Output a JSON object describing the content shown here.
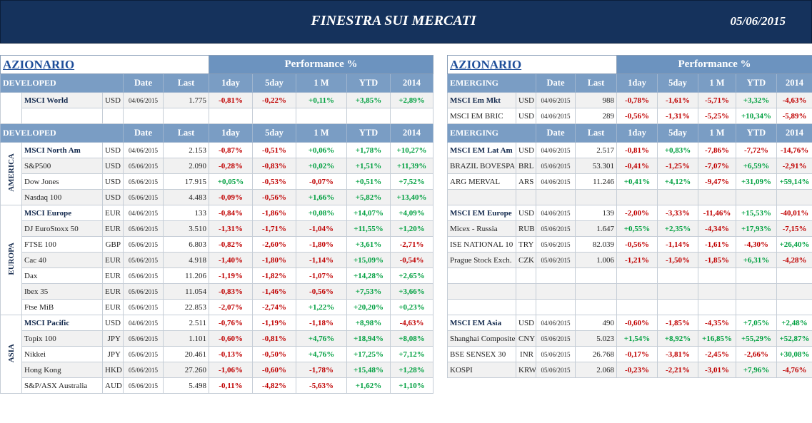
{
  "header": {
    "title": "FINESTRA SUI MERCATI",
    "date": "05/06/2015"
  },
  "left": {
    "title": "AZIONARIO",
    "performance": "Performance %",
    "top": {
      "label": "DEVELOPED",
      "columns": [
        "Date",
        "Last",
        "1day",
        "5day",
        "1 M",
        "YTD",
        "2014"
      ],
      "rows": [
        [
          "MSCI World",
          "USD",
          "04/06/2015",
          "1.775",
          "-0,81%",
          "-0,22%",
          "+0,11%",
          "+3,85%",
          "+2,89%"
        ]
      ]
    },
    "section": {
      "label": "DEVELOPED",
      "columns": [
        "Date",
        "Last",
        "1day",
        "5day",
        "1 M",
        "YTD",
        "2014"
      ],
      "groups": [
        {
          "region": "AMERICA",
          "rows": [
            [
              "MSCI North Am",
              "USD",
              "04/06/2015",
              "2.153",
              "-0,87%",
              "-0,51%",
              "+0,06%",
              "+1,78%",
              "+10,27%"
            ],
            [
              "S&P500",
              "USD",
              "05/06/2015",
              "2.090",
              "-0,28%",
              "-0,83%",
              "+0,02%",
              "+1,51%",
              "+11,39%"
            ],
            [
              "Dow Jones",
              "USD",
              "05/06/2015",
              "17.915",
              "+0,05%",
              "-0,53%",
              "-0,07%",
              "+0,51%",
              "+7,52%"
            ],
            [
              "Nasdaq 100",
              "USD",
              "05/06/2015",
              "4.483",
              "-0,09%",
              "-0,56%",
              "+1,66%",
              "+5,82%",
              "+13,40%"
            ]
          ]
        },
        {
          "region": "EUROPA",
          "rows": [
            [
              "MSCI Europe",
              "EUR",
              "04/06/2015",
              "133",
              "-0,84%",
              "-1,86%",
              "+0,08%",
              "+14,07%",
              "+4,09%"
            ],
            [
              "DJ EuroStoxx 50",
              "EUR",
              "05/06/2015",
              "3.510",
              "-1,31%",
              "-1,71%",
              "-1,04%",
              "+11,55%",
              "+1,20%"
            ],
            [
              "FTSE 100",
              "GBP",
              "05/06/2015",
              "6.803",
              "-0,82%",
              "-2,60%",
              "-1,80%",
              "+3,61%",
              "-2,71%"
            ],
            [
              "Cac 40",
              "EUR",
              "05/06/2015",
              "4.918",
              "-1,40%",
              "-1,80%",
              "-1,14%",
              "+15,09%",
              "-0,54%"
            ],
            [
              "Dax",
              "EUR",
              "05/06/2015",
              "11.206",
              "-1,19%",
              "-1,82%",
              "-1,07%",
              "+14,28%",
              "+2,65%"
            ],
            [
              "Ibex 35",
              "EUR",
              "05/06/2015",
              "11.054",
              "-0,83%",
              "-1,46%",
              "-0,56%",
              "+7,53%",
              "+3,66%"
            ],
            [
              "Ftse MiB",
              "EUR",
              "05/06/2015",
              "22.853",
              "-2,07%",
              "-2,74%",
              "+1,22%",
              "+20,20%",
              "+0,23%"
            ]
          ]
        },
        {
          "region": "ASIA",
          "rows": [
            [
              "MSCI Pacific",
              "USD",
              "04/06/2015",
              "2.511",
              "-0,76%",
              "-1,19%",
              "-1,18%",
              "+8,98%",
              "-4,63%"
            ],
            [
              "Topix 100",
              "JPY",
              "05/06/2015",
              "1.101",
              "-0,60%",
              "-0,81%",
              "+4,76%",
              "+18,94%",
              "+8,08%"
            ],
            [
              "Nikkei",
              "JPY",
              "05/06/2015",
              "20.461",
              "-0,13%",
              "-0,50%",
              "+4,76%",
              "+17,25%",
              "+7,12%"
            ],
            [
              "Hong Kong",
              "HKD",
              "05/06/2015",
              "27.260",
              "-1,06%",
              "-0,60%",
              "-1,78%",
              "+15,48%",
              "+1,28%"
            ],
            [
              "S&P/ASX Australia",
              "AUD",
              "05/06/2015",
              "5.498",
              "-0,11%",
              "-4,82%",
              "-5,63%",
              "+1,62%",
              "+1,10%"
            ]
          ]
        }
      ]
    }
  },
  "right": {
    "title": "AZIONARIO",
    "performance": "Performance %",
    "top": {
      "label": "EMERGING",
      "columns": [
        "Date",
        "Last",
        "1day",
        "5day",
        "1 M",
        "YTD",
        "2014"
      ],
      "rows": [
        [
          "MSCI Em Mkt",
          "USD",
          "04/06/2015",
          "988",
          "-0,78%",
          "-1,61%",
          "-5,71%",
          "+3,32%",
          "-4,63%"
        ],
        [
          "MSCI EM BRIC",
          "USD",
          "04/06/2015",
          "289",
          "-0,56%",
          "-1,31%",
          "-5,25%",
          "+10,34%",
          "-5,89%"
        ]
      ]
    },
    "section": {
      "label": "EMERGING",
      "columns": [
        "Date",
        "Last",
        "1day",
        "5day",
        "1 M",
        "YTD",
        "2014"
      ],
      "groups": [
        {
          "rows": [
            [
              "MSCI EM Lat Am",
              "USD",
              "04/06/2015",
              "2.517",
              "-0,81%",
              "+0,83%",
              "-7,86%",
              "-7,72%",
              "-14,76%"
            ],
            [
              "BRAZIL BOVESPA",
              "BRL",
              "05/06/2015",
              "53.301",
              "-0,41%",
              "-1,25%",
              "-7,07%",
              "+6,59%",
              "-2,91%"
            ],
            [
              "ARG MERVAL",
              "ARS",
              "04/06/2015",
              "11.246",
              "+0,41%",
              "+4,12%",
              "-9,47%",
              "+31,09%",
              "+59,14%"
            ]
          ]
        },
        {
          "rows": [
            [
              "MSCI EM Europe",
              "USD",
              "04/06/2015",
              "139",
              "-2,00%",
              "-3,33%",
              "-11,46%",
              "+15,53%",
              "-40,01%"
            ],
            [
              "Micex - Russia",
              "RUB",
              "05/06/2015",
              "1.647",
              "+0,55%",
              "+2,35%",
              "-4,34%",
              "+17,93%",
              "-7,15%"
            ],
            [
              "ISE NATIONAL 10",
              "TRY",
              "05/06/2015",
              "82.039",
              "-0,56%",
              "-1,14%",
              "-1,61%",
              "-4,30%",
              "+26,40%"
            ],
            [
              "Prague Stock Exch.",
              "CZK",
              "05/06/2015",
              "1.006",
              "-1,21%",
              "-1,50%",
              "-1,85%",
              "+6,31%",
              "-4,28%"
            ]
          ]
        },
        {
          "rows": [
            [
              "MSCI EM Asia",
              "USD",
              "04/06/2015",
              "490",
              "-0,60%",
              "-1,85%",
              "-4,35%",
              "+7,05%",
              "+2,48%"
            ],
            [
              "Shanghai Composite",
              "CNY",
              "05/06/2015",
              "5.023",
              "+1,54%",
              "+8,92%",
              "+16,85%",
              "+55,29%",
              "+52,87%"
            ],
            [
              "BSE SENSEX 30",
              "INR",
              "05/06/2015",
              "26.768",
              "-0,17%",
              "-3,81%",
              "-2,45%",
              "-2,66%",
              "+30,08%"
            ],
            [
              "KOSPI",
              "KRW",
              "05/06/2015",
              "2.068",
              "-0,23%",
              "-2,21%",
              "-3,01%",
              "+7,96%",
              "-4,76%"
            ]
          ]
        }
      ]
    }
  }
}
